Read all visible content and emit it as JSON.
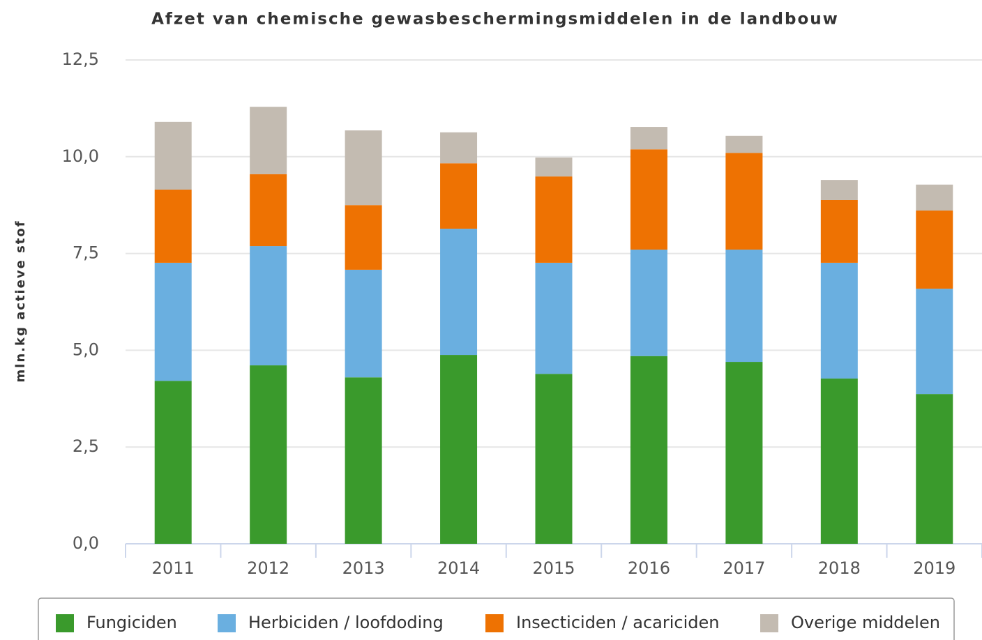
{
  "chart_data": {
    "type": "bar",
    "stacked": true,
    "title": "Afzet van chemische gewasbeschermingsmiddelen in de landbouw",
    "y_label": "mln.kg actieve stof",
    "categories": [
      "2011",
      "2012",
      "2013",
      "2014",
      "2015",
      "2016",
      "2017",
      "2018",
      "2019"
    ],
    "series": [
      {
        "name": "Fungiciden",
        "color": "#3a9a2c",
        "values": [
          4.21,
          4.61,
          4.3,
          4.88,
          4.39,
          4.85,
          4.7,
          4.27,
          3.87
        ]
      },
      {
        "name": "Herbiciden / loofdoding",
        "color": "#6aafe0",
        "values": [
          3.05,
          3.08,
          2.78,
          3.26,
          2.87,
          2.75,
          2.9,
          2.99,
          2.72
        ]
      },
      {
        "name": "Insecticiden / acariciden",
        "color": "#ee7202",
        "values": [
          1.89,
          1.86,
          1.67,
          1.69,
          2.23,
          2.59,
          2.5,
          1.62,
          2.02
        ]
      },
      {
        "name": "Overige middelen",
        "color": "#c3bbb1",
        "values": [
          1.75,
          1.74,
          1.93,
          0.8,
          0.49,
          0.58,
          0.44,
          0.52,
          0.67
        ]
      }
    ],
    "ylim": [
      0,
      12.5
    ],
    "yticks": [
      {
        "value": 0,
        "label": "0,0"
      },
      {
        "value": 2.5,
        "label": "2,5"
      },
      {
        "value": 5,
        "label": "5,0"
      },
      {
        "value": 7.5,
        "label": "7,5"
      },
      {
        "value": 10,
        "label": "10,0"
      },
      {
        "value": 12.5,
        "label": "12,5"
      }
    ],
    "grid": true,
    "legend": "bottom"
  }
}
